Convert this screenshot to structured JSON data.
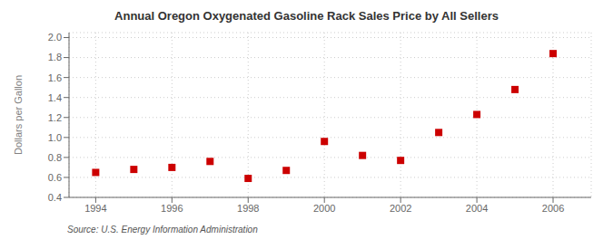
{
  "chart_data": {
    "type": "scatter",
    "title": "Annual Oregon Oxygenated Gasoline Rack Sales Price by All Sellers",
    "y_label": "Dollars per Gallon",
    "annotations": [
      "Source: U.S. Energy Information Administration"
    ],
    "x": [
      1994,
      1995,
      1996,
      1997,
      1998,
      1999,
      2000,
      2001,
      2002,
      2003,
      2004,
      2005,
      2006
    ],
    "values": [
      0.65,
      0.68,
      0.7,
      0.76,
      0.59,
      0.67,
      0.96,
      0.82,
      0.77,
      1.05,
      1.23,
      1.48,
      1.84
    ],
    "xlim": [
      1993.3,
      2007.0
    ],
    "ylim": [
      0.4,
      2.05
    ],
    "xticks": [
      1994,
      1996,
      1998,
      2000,
      2002,
      2004,
      2006
    ],
    "yticks": [
      0.4,
      0.6,
      0.8,
      {
        "value": 1.0,
        "label": "1.0"
      },
      1.2,
      1.4,
      1.6,
      1.8,
      {
        "value": 2.0,
        "label": "2.0"
      }
    ],
    "color": "#cc0000",
    "marker": "square",
    "grid": true
  }
}
